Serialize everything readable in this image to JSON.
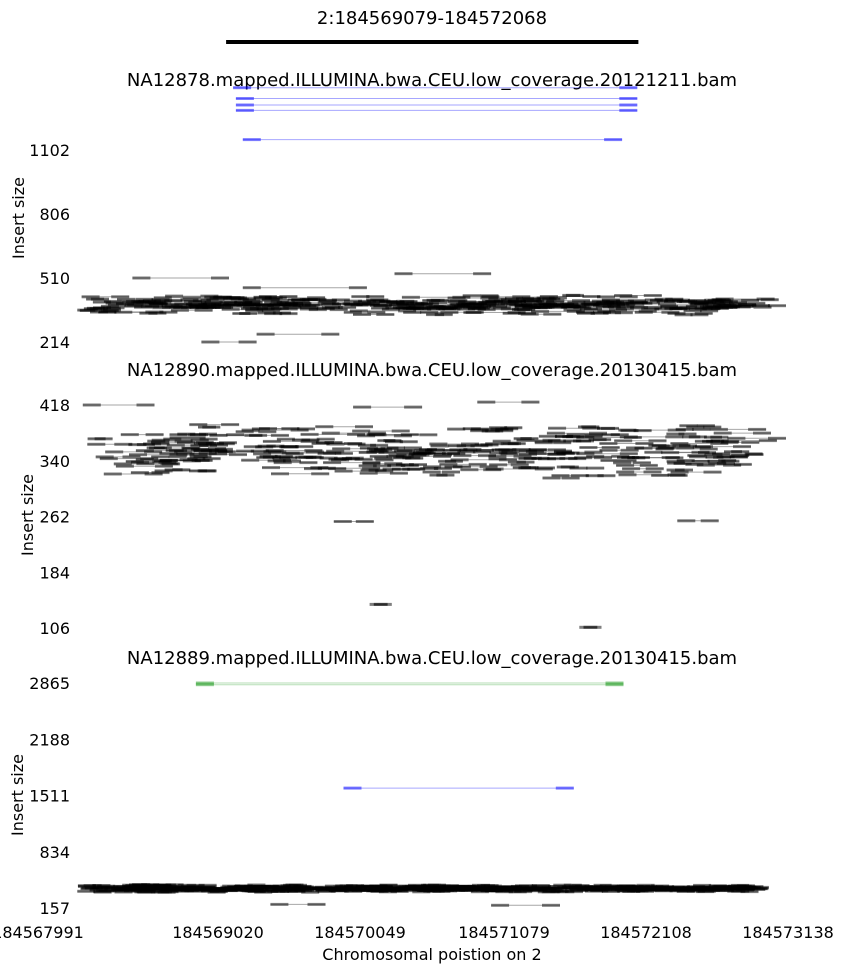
{
  "region_title": "2:184569079-184572068",
  "region_bar": {
    "start": 184569079,
    "end": 184572068
  },
  "xaxis": {
    "label": "Chromosomal poistion on 2",
    "min": 184567991,
    "max": 184573138,
    "ticks": [
      "184567991",
      "184569020",
      "184570049",
      "184571079",
      "184572108",
      "184573138"
    ]
  },
  "colors": {
    "normal": "#000000",
    "deletion": "#0000ff",
    "long": "#2ca02c"
  },
  "chart_data": [
    {
      "type": "scatter",
      "title": "NA12878.mapped.ILLUMINA.bwa.CEU.low_coverage.20121211.bam",
      "ylabel": "Insert size",
      "yticks": [
        1102,
        806,
        510,
        214
      ],
      "ylim": [
        180,
        1150
      ],
      "notable_pairs": [
        {
          "start": 184569130,
          "end": 184572060,
          "insert": 1390,
          "color": "deletion"
        },
        {
          "start": 184569150,
          "end": 184572060,
          "insert": 1340,
          "color": "deletion"
        },
        {
          "start": 184569150,
          "end": 184572060,
          "insert": 1310,
          "color": "deletion"
        },
        {
          "start": 184569150,
          "end": 184572060,
          "insert": 1285,
          "color": "deletion"
        },
        {
          "start": 184569200,
          "end": 184571950,
          "insert": 1150,
          "color": "deletion"
        },
        {
          "start": 184568400,
          "end": 184569100,
          "insert": 510,
          "color": "normal"
        },
        {
          "start": 184569200,
          "end": 184570100,
          "insert": 465,
          "color": "normal"
        },
        {
          "start": 184570300,
          "end": 184571000,
          "insert": 530,
          "color": "normal"
        },
        {
          "start": 184568900,
          "end": 184569300,
          "insert": 214,
          "color": "normal"
        },
        {
          "start": 184569300,
          "end": 184569900,
          "insert": 250,
          "color": "normal"
        }
      ],
      "band": {
        "insert_center": 385,
        "insert_spread": 50
      }
    },
    {
      "type": "scatter",
      "title": "NA12890.mapped.ILLUMINA.bwa.CEU.low_coverage.20130415.bam",
      "ylabel": "Insert size",
      "yticks": [
        418,
        340,
        262,
        184,
        106
      ],
      "ylim": [
        100,
        425
      ],
      "notable_pairs": [
        {
          "start": 184568040,
          "end": 184568560,
          "insert": 418,
          "color": "normal"
        },
        {
          "start": 184570900,
          "end": 184571350,
          "insert": 422,
          "color": "normal"
        },
        {
          "start": 184570000,
          "end": 184570500,
          "insert": 415,
          "color": "normal"
        },
        {
          "start": 184569860,
          "end": 184570150,
          "insert": 255,
          "color": "normal"
        },
        {
          "start": 184572350,
          "end": 184572650,
          "insert": 256,
          "color": "normal"
        },
        {
          "start": 184570150,
          "end": 184570250,
          "insert": 139,
          "color": "normal"
        },
        {
          "start": 184571670,
          "end": 184571770,
          "insert": 107,
          "color": "normal"
        }
      ],
      "band": {
        "insert_center": 355,
        "insert_spread": 40
      }
    },
    {
      "type": "scatter",
      "title": "NA12889.mapped.ILLUMINA.bwa.CEU.low_coverage.20130415.bam",
      "ylabel": "Insert size",
      "yticks": [
        2865,
        2188,
        1511,
        834,
        157
      ],
      "ylim": [
        140,
        2900
      ],
      "notable_pairs": [
        {
          "start": 184568860,
          "end": 184571960,
          "insert": 2865,
          "color": "long"
        },
        {
          "start": 184568860,
          "end": 184571960,
          "insert": 2845,
          "color": "long"
        },
        {
          "start": 184569930,
          "end": 184571600,
          "insert": 1600,
          "color": "deletion"
        },
        {
          "start": 184569400,
          "end": 184569800,
          "insert": 200,
          "color": "normal"
        },
        {
          "start": 184571000,
          "end": 184571500,
          "insert": 190,
          "color": "normal"
        }
      ],
      "band": {
        "insert_center": 390,
        "insert_spread": 50
      }
    }
  ]
}
